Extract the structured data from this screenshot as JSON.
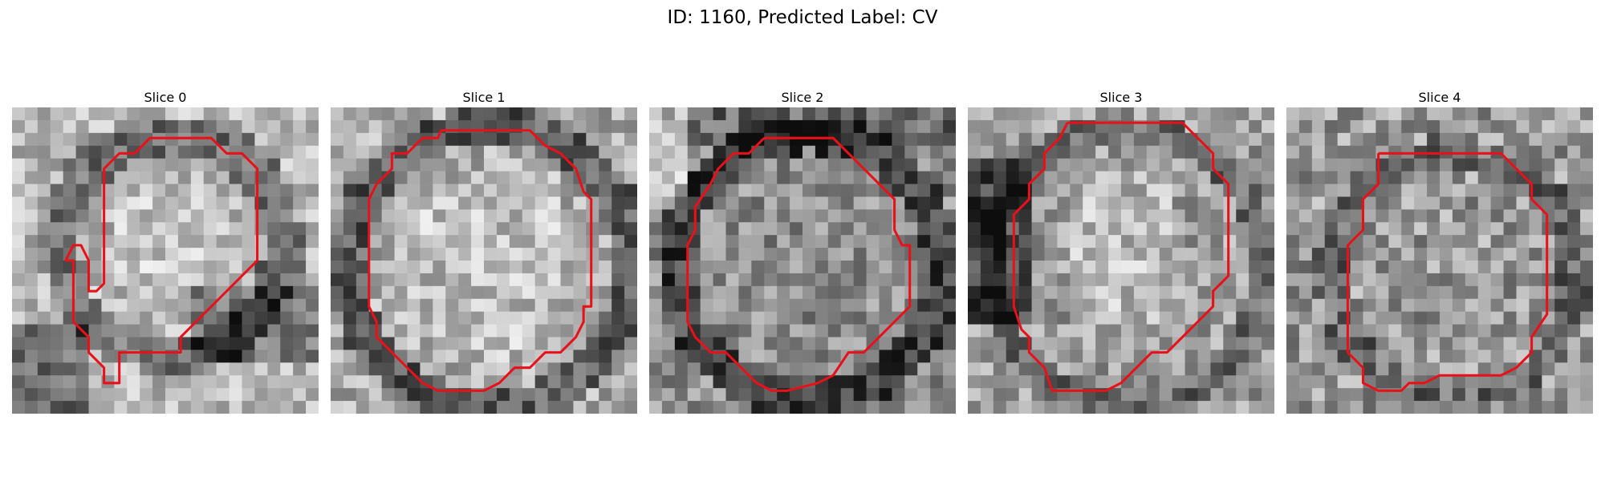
{
  "figure": {
    "title": "ID: 1160, Predicted Label: CV"
  },
  "colors": {
    "contour": "#e8111a"
  },
  "panels": [
    {
      "title": "Slice 0",
      "contour": [
        [
          9.5,
          2
        ],
        [
          13,
          2
        ],
        [
          14,
          3
        ],
        [
          15,
          3
        ],
        [
          16,
          4
        ],
        [
          16,
          10
        ],
        [
          15,
          11
        ],
        [
          14,
          12
        ],
        [
          13,
          13
        ],
        [
          12,
          14
        ],
        [
          11,
          15
        ],
        [
          11,
          16
        ],
        [
          7,
          16
        ],
        [
          7,
          17
        ],
        [
          7,
          18
        ],
        [
          6,
          18
        ],
        [
          6,
          17
        ],
        [
          5,
          16
        ],
        [
          5,
          15
        ],
        [
          4,
          14
        ],
        [
          4,
          10
        ],
        [
          3.5,
          10
        ],
        [
          4,
          9
        ],
        [
          4.5,
          9
        ],
        [
          5,
          10
        ],
        [
          5,
          12
        ],
        [
          5.5,
          12
        ],
        [
          6,
          11.5
        ],
        [
          6,
          6
        ],
        [
          6,
          5
        ],
        [
          6,
          4
        ],
        [
          7,
          3
        ],
        [
          8,
          3
        ],
        [
          9,
          2
        ],
        [
          9.5,
          2
        ]
      ]
    },
    {
      "title": "Slice 1",
      "contour": [
        [
          7.2,
          1.5
        ],
        [
          10,
          1.5
        ],
        [
          13,
          1.5
        ],
        [
          14,
          2.5
        ],
        [
          15,
          3
        ],
        [
          16,
          4
        ],
        [
          16.5,
          5.5
        ],
        [
          17,
          6
        ],
        [
          17,
          9
        ],
        [
          17,
          11
        ],
        [
          17,
          13
        ],
        [
          16.5,
          13
        ],
        [
          16.5,
          14
        ],
        [
          16,
          15
        ],
        [
          15,
          16
        ],
        [
          14,
          16
        ],
        [
          13,
          17
        ],
        [
          12,
          17
        ],
        [
          11,
          18
        ],
        [
          10,
          18.5
        ],
        [
          8,
          18.5
        ],
        [
          7,
          18.5
        ],
        [
          6,
          18
        ],
        [
          5,
          17
        ],
        [
          4,
          16
        ],
        [
          3,
          15
        ],
        [
          3,
          14
        ],
        [
          2.5,
          13
        ],
        [
          2.5,
          9
        ],
        [
          2.5,
          6
        ],
        [
          3,
          5
        ],
        [
          4,
          4
        ],
        [
          4,
          3
        ],
        [
          5,
          3
        ],
        [
          6,
          2
        ],
        [
          7,
          2
        ],
        [
          7.2,
          1.5
        ]
      ]
    },
    {
      "title": "Slice 2",
      "contour": [
        [
          7.5,
          2
        ],
        [
          10,
          2
        ],
        [
          12,
          2
        ],
        [
          13,
          3
        ],
        [
          14,
          4
        ],
        [
          15,
          5
        ],
        [
          16,
          6
        ],
        [
          16,
          8
        ],
        [
          16.5,
          9
        ],
        [
          17,
          9
        ],
        [
          17,
          11
        ],
        [
          17,
          13
        ],
        [
          16.5,
          13.5
        ],
        [
          16,
          14
        ],
        [
          15,
          15
        ],
        [
          14,
          16
        ],
        [
          13,
          16
        ],
        [
          12,
          17.5
        ],
        [
          11,
          18
        ],
        [
          9,
          18.5
        ],
        [
          8,
          18.5
        ],
        [
          7,
          18
        ],
        [
          6,
          17
        ],
        [
          5,
          16
        ],
        [
          4,
          16
        ],
        [
          3,
          15
        ],
        [
          2.5,
          14
        ],
        [
          2.5,
          12
        ],
        [
          2.5,
          9
        ],
        [
          3,
          8
        ],
        [
          3,
          6.5
        ],
        [
          4,
          5
        ],
        [
          4.5,
          4
        ],
        [
          5.5,
          3
        ],
        [
          6.5,
          3
        ],
        [
          7.5,
          2
        ]
      ]
    },
    {
      "title": "Slice 3",
      "contour": [
        [
          6.5,
          1
        ],
        [
          10,
          1
        ],
        [
          14,
          1
        ],
        [
          15,
          2
        ],
        [
          16,
          3
        ],
        [
          16,
          4
        ],
        [
          17,
          5
        ],
        [
          17,
          7
        ],
        [
          17,
          10
        ],
        [
          17,
          11
        ],
        [
          16,
          12
        ],
        [
          16,
          13
        ],
        [
          15,
          14
        ],
        [
          14,
          15
        ],
        [
          13,
          16
        ],
        [
          12,
          16
        ],
        [
          11,
          17
        ],
        [
          10,
          18
        ],
        [
          9,
          18.5
        ],
        [
          7,
          18.5
        ],
        [
          5.5,
          18.5
        ],
        [
          5,
          17
        ],
        [
          4,
          16
        ],
        [
          4,
          15
        ],
        [
          3.5,
          14.5
        ],
        [
          3,
          13
        ],
        [
          3,
          8
        ],
        [
          3,
          7
        ],
        [
          4,
          6
        ],
        [
          4,
          5
        ],
        [
          5,
          4
        ],
        [
          5,
          3
        ],
        [
          6,
          2
        ],
        [
          6.5,
          1
        ]
      ]
    },
    {
      "title": "Slice 4",
      "contour": [
        [
          6,
          3
        ],
        [
          10,
          3
        ],
        [
          14,
          3
        ],
        [
          15,
          4
        ],
        [
          16,
          5
        ],
        [
          16,
          6
        ],
        [
          17,
          7
        ],
        [
          17,
          9
        ],
        [
          17,
          12
        ],
        [
          17,
          13.5
        ],
        [
          16,
          15
        ],
        [
          16,
          16
        ],
        [
          15,
          17
        ],
        [
          14,
          17.5
        ],
        [
          12,
          17.5
        ],
        [
          10,
          17.5
        ],
        [
          9,
          18
        ],
        [
          8,
          18
        ],
        [
          7.5,
          18.5
        ],
        [
          6,
          18.5
        ],
        [
          5,
          18
        ],
        [
          5,
          17
        ],
        [
          4,
          16
        ],
        [
          4,
          15
        ],
        [
          4,
          14
        ],
        [
          4,
          12
        ],
        [
          4,
          10
        ],
        [
          4,
          9
        ],
        [
          5,
          8
        ],
        [
          5,
          7
        ],
        [
          5,
          6
        ],
        [
          6,
          5
        ],
        [
          6,
          4
        ],
        [
          6,
          3
        ]
      ]
    }
  ]
}
